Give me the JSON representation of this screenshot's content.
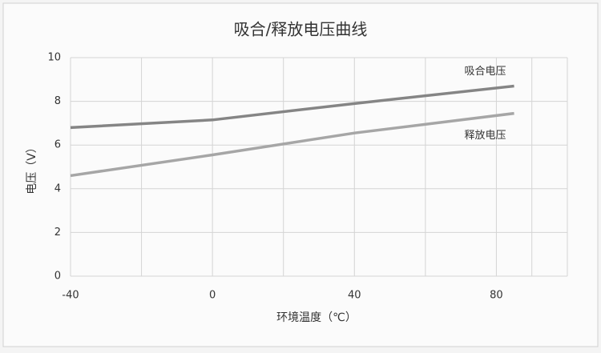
{
  "chart_data": {
    "type": "line",
    "title": "吸合/释放电压曲线",
    "xlabel": "环境温度（℃）",
    "ylabel": "电压（V）",
    "x": [
      -40,
      0,
      40,
      85
    ],
    "series": [
      {
        "name": "吸合电压",
        "color": "#858585",
        "values": [
          6.8,
          7.15,
          7.9,
          8.7
        ]
      },
      {
        "name": "释放电压",
        "color": "#a6a6a6",
        "values": [
          4.6,
          5.55,
          6.55,
          7.45
        ]
      }
    ],
    "xlim": [
      -40,
      100
    ],
    "xticks": [
      -40,
      0,
      40,
      80
    ],
    "ylim": [
      0,
      10
    ],
    "yticks": [
      0,
      2,
      4,
      6,
      8,
      10
    ],
    "grid": true
  }
}
